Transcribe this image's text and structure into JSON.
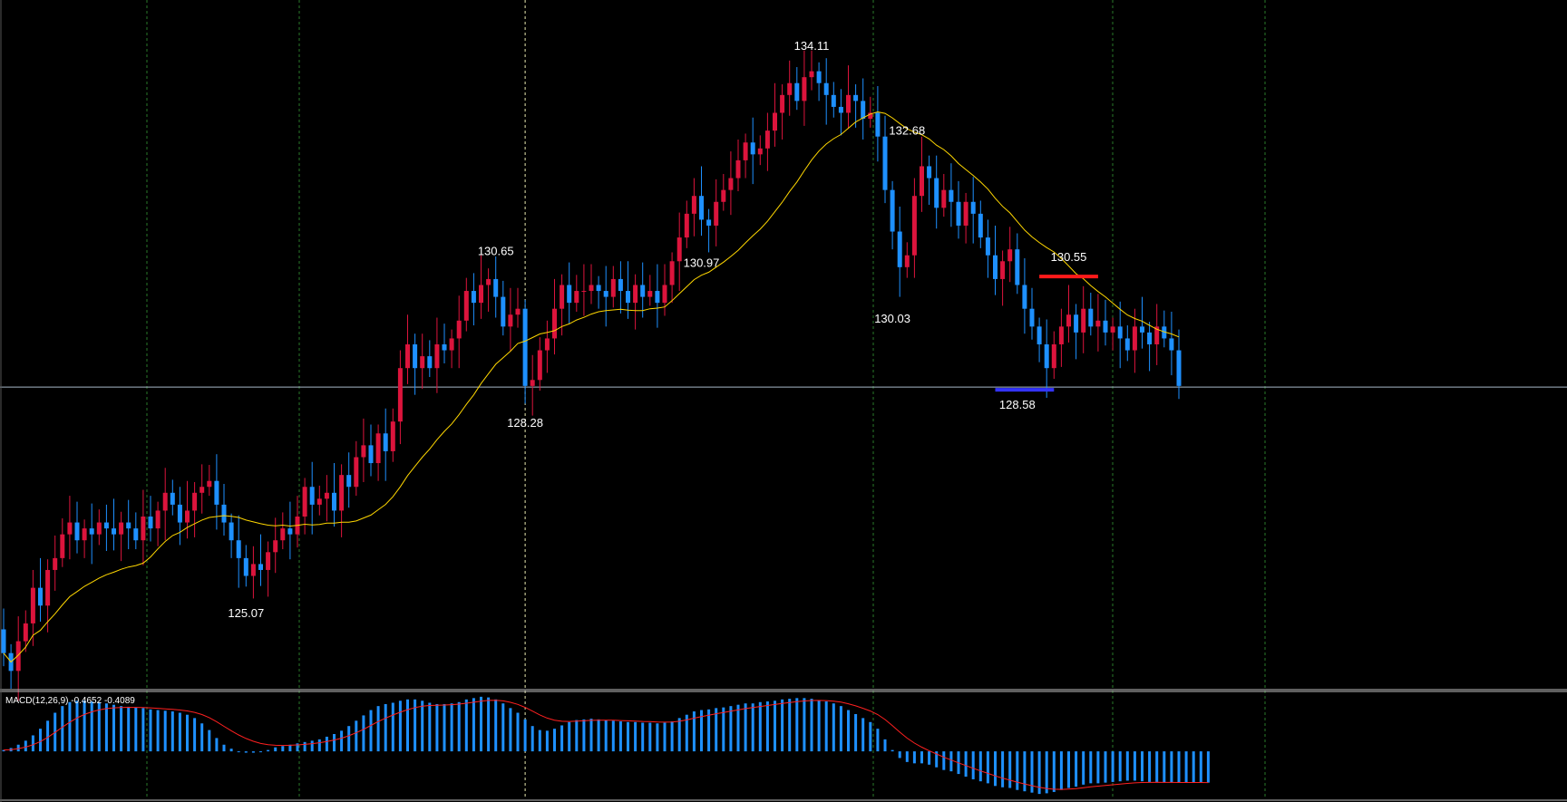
{
  "colors": {
    "background": "#000000",
    "bull": "#dc143c",
    "bear": "#1e90ff",
    "ma_line": "#ffd700",
    "macd_hist": "#1e90ff",
    "macd_signal": "#ff2020",
    "grid_dashed": "#2a7a2a",
    "crosshair": "#e8e8b0",
    "hline": "#a8b8c8",
    "support": "#3333ff",
    "resistance": "#ff1a1a",
    "frame": "#c0c0c0"
  },
  "indicator_label": "MACD(12,26,9) -0.4652 -0.4089",
  "chart_data": {
    "type": "candlestick",
    "price_axis": [
      123.5,
      135.1
    ],
    "horizontal_line": 128.58,
    "annotations": [
      {
        "text": "134.11",
        "value": 134.11,
        "bar": 110
      },
      {
        "text": "132.68",
        "value": 132.68,
        "bar": 123
      },
      {
        "text": "130.65",
        "value": 130.65,
        "bar": 67
      },
      {
        "text": "130.97",
        "value": 130.97,
        "bar": 95
      },
      {
        "text": "130.03",
        "value": 130.03,
        "bar": 121
      },
      {
        "text": "130.55",
        "value": 130.55,
        "bar": 145
      },
      {
        "text": "128.28",
        "value": 128.28,
        "bar": 71
      },
      {
        "text": "128.58",
        "value": 128.58,
        "bar": 138
      },
      {
        "text": "125.07",
        "value": 125.07,
        "bar": 33
      }
    ],
    "support_level": {
      "value": 128.58,
      "from_bar": 135,
      "to_bar": 143
    },
    "resistance_level": {
      "value": 130.55,
      "from_bar": 141,
      "to_bar": 149
    },
    "crosshair_bar": 71,
    "closes": [
      124.1,
      123.8,
      124.3,
      124.6,
      125.2,
      124.9,
      125.5,
      125.7,
      126.1,
      126.3,
      126.0,
      126.2,
      126.1,
      126.3,
      126.2,
      126.1,
      126.3,
      126.2,
      126.0,
      126.4,
      126.2,
      126.5,
      126.8,
      126.6,
      126.3,
      126.5,
      126.8,
      126.9,
      127.0,
      126.6,
      126.3,
      126.0,
      125.7,
      125.4,
      125.6,
      125.5,
      125.8,
      126.0,
      126.2,
      126.1,
      126.4,
      126.9,
      126.6,
      126.7,
      126.8,
      126.5,
      127.1,
      126.9,
      127.4,
      127.6,
      127.3,
      127.8,
      127.5,
      128.0,
      128.9,
      129.3,
      128.9,
      129.1,
      128.9,
      129.3,
      129.2,
      129.4,
      129.7,
      130.2,
      130.0,
      130.3,
      130.4,
      130.1,
      129.6,
      129.8,
      129.9,
      128.6,
      128.7,
      129.2,
      129.4,
      129.9,
      130.3,
      130.0,
      130.2,
      130.2,
      130.3,
      130.2,
      130.1,
      130.4,
      130.2,
      130.0,
      130.3,
      130.1,
      130.2,
      130.0,
      130.3,
      130.7,
      131.1,
      131.5,
      131.8,
      131.4,
      131.3,
      131.7,
      131.9,
      132.1,
      132.4,
      132.7,
      132.5,
      132.6,
      132.9,
      133.2,
      133.5,
      133.7,
      133.4,
      133.8,
      133.9,
      133.7,
      133.5,
      133.3,
      133.2,
      133.5,
      133.4,
      133.1,
      133.2,
      132.8,
      131.9,
      131.2,
      130.6,
      130.8,
      131.8,
      132.3,
      132.1,
      131.6,
      131.9,
      131.7,
      131.3,
      131.7,
      131.5,
      131.1,
      130.8,
      130.4,
      130.7,
      130.9,
      130.3,
      129.9,
      129.6,
      129.3,
      128.9,
      129.3,
      129.6,
      129.8,
      129.5,
      129.9,
      129.6,
      129.7,
      129.5,
      129.6,
      129.4,
      129.2,
      129.6,
      129.5,
      129.3,
      129.6,
      129.4,
      129.2,
      128.6
    ],
    "macd_hist": [
      0.02,
      0.05,
      0.1,
      0.16,
      0.24,
      0.34,
      0.46,
      0.58,
      0.68,
      0.74,
      0.76,
      0.76,
      0.75,
      0.74,
      0.72,
      0.7,
      0.68,
      0.67,
      0.66,
      0.65,
      0.63,
      0.62,
      0.61,
      0.6,
      0.58,
      0.55,
      0.5,
      0.42,
      0.32,
      0.2,
      0.1,
      0.04,
      0.0,
      -0.02,
      -0.02,
      -0.01,
      0.02,
      0.06,
      0.08,
      0.1,
      0.12,
      0.14,
      0.16,
      0.18,
      0.22,
      0.26,
      0.31,
      0.38,
      0.46,
      0.54,
      0.62,
      0.68,
      0.71,
      0.73,
      0.76,
      0.78,
      0.78,
      0.76,
      0.73,
      0.71,
      0.71,
      0.72,
      0.74,
      0.78,
      0.8,
      0.82,
      0.81,
      0.78,
      0.72,
      0.65,
      0.58,
      0.48,
      0.38,
      0.32,
      0.31,
      0.34,
      0.39,
      0.44,
      0.47,
      0.48,
      0.49,
      0.48,
      0.47,
      0.46,
      0.45,
      0.44,
      0.44,
      0.43,
      0.43,
      0.42,
      0.43,
      0.45,
      0.5,
      0.55,
      0.6,
      0.62,
      0.63,
      0.65,
      0.66,
      0.68,
      0.7,
      0.72,
      0.72,
      0.74,
      0.75,
      0.76,
      0.78,
      0.79,
      0.8,
      0.8,
      0.79,
      0.77,
      0.75,
      0.72,
      0.68,
      0.62,
      0.56,
      0.5,
      0.44,
      0.34,
      0.18,
      0.02,
      -0.1,
      -0.16,
      -0.18,
      -0.18,
      -0.2,
      -0.24,
      -0.28,
      -0.3,
      -0.34,
      -0.38,
      -0.42,
      -0.45,
      -0.48,
      -0.52,
      -0.54,
      -0.55,
      -0.58,
      -0.6,
      -0.62,
      -0.64,
      -0.63,
      -0.61,
      -0.58,
      -0.55,
      -0.53,
      -0.5,
      -0.48,
      -0.48,
      -0.47,
      -0.46,
      -0.45,
      -0.44,
      -0.44,
      -0.45,
      -0.46,
      -0.46,
      -0.47,
      -0.47,
      -0.47,
      -0.47,
      -0.47,
      -0.47,
      -0.47
    ],
    "macd_range": [
      -0.72,
      0.9
    ]
  }
}
